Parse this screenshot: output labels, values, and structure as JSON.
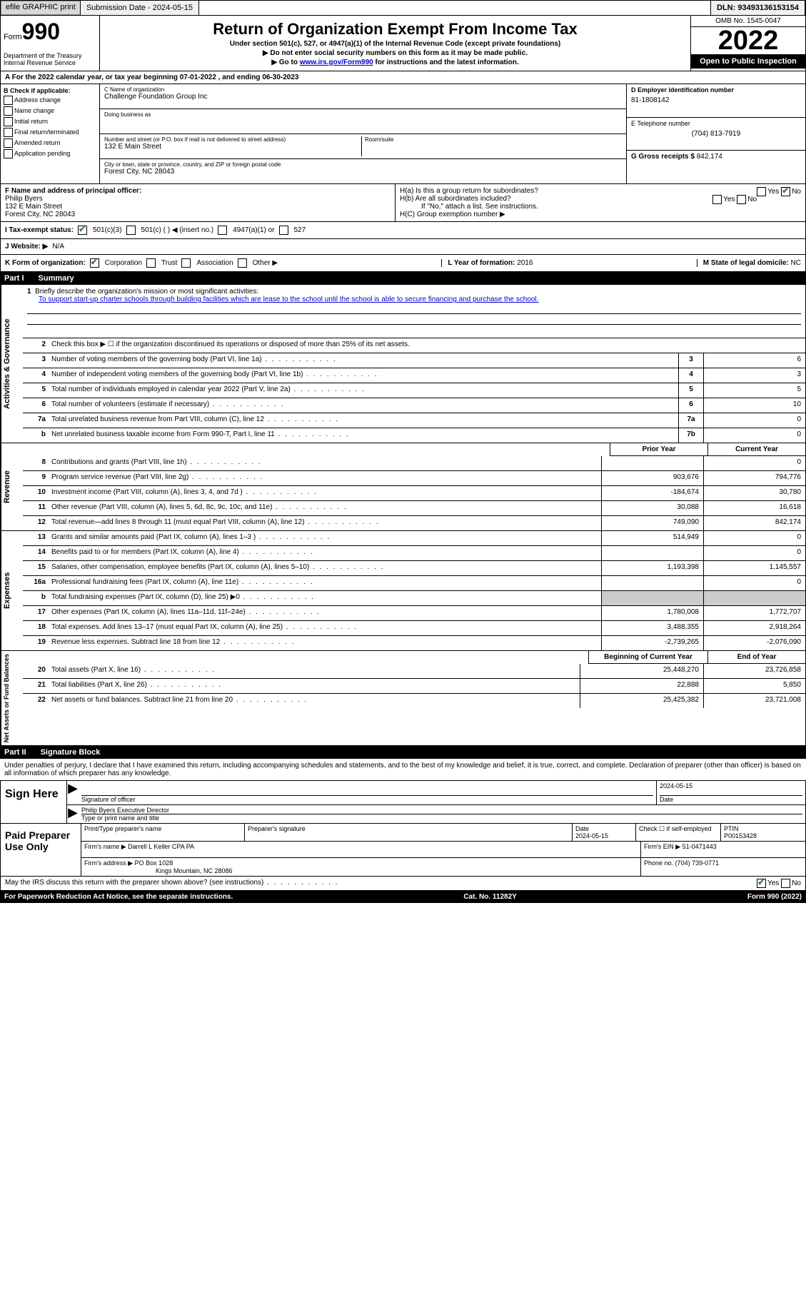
{
  "top": {
    "efile": "efile GRAPHIC print",
    "submission": "Submission Date - 2024-05-15",
    "dln": "DLN: 93493136153154"
  },
  "header": {
    "form_label": "Form",
    "form_number": "990",
    "title": "Return of Organization Exempt From Income Tax",
    "subtitle1": "Under section 501(c), 527, or 4947(a)(1) of the Internal Revenue Code (except private foundations)",
    "subtitle2": "▶ Do not enter social security numbers on this form as it may be made public.",
    "subtitle3_pre": "▶ Go to ",
    "subtitle3_link": "www.irs.gov/Form990",
    "subtitle3_post": " for instructions and the latest information.",
    "dept": "Department of the Treasury",
    "irs": "Internal Revenue Service",
    "omb": "OMB No. 1545-0047",
    "year": "2022",
    "open": "Open to Public Inspection"
  },
  "line_a": "A For the 2022 calendar year, or tax year beginning 07-01-2022    , and ending 06-30-2023",
  "box_b": {
    "label": "B Check if applicable:",
    "opts": [
      "Address change",
      "Name change",
      "Initial return",
      "Final return/terminated",
      "Amended return",
      "Application pending"
    ]
  },
  "box_c": {
    "name_label": "C Name of organization",
    "name": "Challenge Foundation Group Inc",
    "dba_label": "Doing business as",
    "dba": "",
    "addr_label": "Number and street (or P.O. box if mail is not delivered to street address)",
    "room_label": "Room/suite",
    "addr": "132 E Main Street",
    "city_label": "City or town, state or province, country, and ZIP or foreign postal code",
    "city": "Forest City, NC  28043"
  },
  "box_d": {
    "ein_label": "D Employer identification number",
    "ein": "81-1808142",
    "tel_label": "E Telephone number",
    "tel": "(704) 813-7919",
    "gross_label": "G Gross receipts $",
    "gross": "842,174"
  },
  "box_f": {
    "label": "F  Name and address of principal officer:",
    "name": "Philip Byers",
    "addr1": "132 E Main Street",
    "addr2": "Forest City, NC  28043"
  },
  "box_h": {
    "ha": "H(a)  Is this a group return for subordinates?",
    "ha_yes": "Yes",
    "ha_no": "No",
    "hb": "H(b)  Are all subordinates included?",
    "hb_yes": "Yes",
    "hb_no": "No",
    "hb_note": "If \"No,\" attach a list. See instructions.",
    "hc": "H(C)  Group exemption number ▶"
  },
  "status": {
    "i_label": "I   Tax-exempt status:",
    "o501c3": "501(c)(3)",
    "o501c": "501(c) (    ) ◀ (insert no.)",
    "o4947": "4947(a)(1) or",
    "o527": "527"
  },
  "website": {
    "label": "J  Website: ▶",
    "val": "N/A"
  },
  "korg": {
    "label": "K Form of organization:",
    "corp": "Corporation",
    "trust": "Trust",
    "assoc": "Association",
    "other": "Other ▶",
    "l_label": "L Year of formation:",
    "l_val": "2016",
    "m_label": "M State of legal domicile:",
    "m_val": "NC"
  },
  "part1": {
    "num": "Part I",
    "title": "Summary"
  },
  "mission": {
    "q1": "Briefly describe the organization's mission or most significant activities:",
    "text": "To support start-up charter schools through building facilities which are lease to the school until the school is able to secure financing and purchase the school."
  },
  "q2": "Check this box ▶ ☐ if the organization discontinued its operations or disposed of more than 25% of its net assets.",
  "sideA": "Activities & Governance",
  "sideB": "Revenue",
  "sideC": "Expenses",
  "sideD": "Net Assets or Fund Balances",
  "lines_gov": [
    {
      "n": "3",
      "t": "Number of voting members of the governing body (Part VI, line 1a)",
      "box": "3",
      "v": "6"
    },
    {
      "n": "4",
      "t": "Number of independent voting members of the governing body (Part VI, line 1b)",
      "box": "4",
      "v": "3"
    },
    {
      "n": "5",
      "t": "Total number of individuals employed in calendar year 2022 (Part V, line 2a)",
      "box": "5",
      "v": "5"
    },
    {
      "n": "6",
      "t": "Total number of volunteers (estimate if necessary)",
      "box": "6",
      "v": "10"
    },
    {
      "n": "7a",
      "t": "Total unrelated business revenue from Part VIII, column (C), line 12",
      "box": "7a",
      "v": "0"
    },
    {
      "n": "b",
      "t": "Net unrelated business taxable income from Form 990-T, Part I, line 11",
      "box": "7b",
      "v": "0"
    }
  ],
  "col_headers": {
    "prior": "Prior Year",
    "current": "Current Year"
  },
  "lines_rev": [
    {
      "n": "8",
      "t": "Contributions and grants (Part VIII, line 1h)",
      "py": "",
      "cy": "0"
    },
    {
      "n": "9",
      "t": "Program service revenue (Part VIII, line 2g)",
      "py": "903,676",
      "cy": "794,776"
    },
    {
      "n": "10",
      "t": "Investment income (Part VIII, column (A), lines 3, 4, and 7d )",
      "py": "-184,674",
      "cy": "30,780"
    },
    {
      "n": "11",
      "t": "Other revenue (Part VIII, column (A), lines 5, 6d, 8c, 9c, 10c, and 11e)",
      "py": "30,088",
      "cy": "16,618"
    },
    {
      "n": "12",
      "t": "Total revenue—add lines 8 through 11 (must equal Part VIII, column (A), line 12)",
      "py": "749,090",
      "cy": "842,174"
    }
  ],
  "lines_exp": [
    {
      "n": "13",
      "t": "Grants and similar amounts paid (Part IX, column (A), lines 1–3 )",
      "py": "514,949",
      "cy": "0"
    },
    {
      "n": "14",
      "t": "Benefits paid to or for members (Part IX, column (A), line 4)",
      "py": "",
      "cy": "0"
    },
    {
      "n": "15",
      "t": "Salaries, other compensation, employee benefits (Part IX, column (A), lines 5–10)",
      "py": "1,193,398",
      "cy": "1,145,557"
    },
    {
      "n": "16a",
      "t": "Professional fundraising fees (Part IX, column (A), line 11e)",
      "py": "",
      "cy": "0"
    },
    {
      "n": "b",
      "t": "Total fundraising expenses (Part IX, column (D), line 25) ▶0",
      "py": "SHADE",
      "cy": "SHADE"
    },
    {
      "n": "17",
      "t": "Other expenses (Part IX, column (A), lines 11a–11d, 11f–24e)",
      "py": "1,780,008",
      "cy": "1,772,707"
    },
    {
      "n": "18",
      "t": "Total expenses. Add lines 13–17 (must equal Part IX, column (A), line 25)",
      "py": "3,488,355",
      "cy": "2,918,264"
    },
    {
      "n": "19",
      "t": "Revenue less expenses. Subtract line 18 from line 12",
      "py": "-2,739,265",
      "cy": "-2,076,090"
    }
  ],
  "col_headers2": {
    "prior": "Beginning of Current Year",
    "current": "End of Year"
  },
  "lines_net": [
    {
      "n": "20",
      "t": "Total assets (Part X, line 16)",
      "py": "25,448,270",
      "cy": "23,726,858"
    },
    {
      "n": "21",
      "t": "Total liabilities (Part X, line 26)",
      "py": "22,888",
      "cy": "5,850"
    },
    {
      "n": "22",
      "t": "Net assets or fund balances. Subtract line 21 from line 20",
      "py": "25,425,382",
      "cy": "23,721,008"
    }
  ],
  "part2": {
    "num": "Part II",
    "title": "Signature Block"
  },
  "penalties": "Under penalties of perjury, I declare that I have examined this return, including accompanying schedules and statements, and to the best of my knowledge and belief, it is true, correct, and complete. Declaration of preparer (other than officer) is based on all information of which preparer has any knowledge.",
  "sign": {
    "here": "Sign Here",
    "sig_label": "Signature of officer",
    "date_label": "Date",
    "date": "2024-05-15",
    "name": "Philip Byers  Executive Director",
    "name_label": "Type or print name and title"
  },
  "prep": {
    "label": "Paid Preparer Use Only",
    "pt_name_label": "Print/Type preparer's name",
    "pt_sig_label": "Preparer's signature",
    "pt_date_label": "Date",
    "pt_date": "2024-05-15",
    "pt_check": "Check ☐ if self-employed",
    "ptin_label": "PTIN",
    "ptin": "P00153428",
    "firm_name_label": "Firm's name    ▶",
    "firm_name": "Darrell L Keller CPA PA",
    "firm_ein_label": "Firm's EIN ▶",
    "firm_ein": "51-0471443",
    "firm_addr_label": "Firm's address ▶",
    "firm_addr1": "PO Box 1028",
    "firm_addr2": "Kings Mountain, NC  28086",
    "phone_label": "Phone no.",
    "phone": "(704) 739-0771"
  },
  "discuss": {
    "q": "May the IRS discuss this return with the preparer shown above? (see instructions)",
    "yes": "Yes",
    "no": "No"
  },
  "footer": {
    "paperwork": "For Paperwork Reduction Act Notice, see the separate instructions.",
    "cat": "Cat. No. 11282Y",
    "form": "Form 990 (2022)"
  }
}
